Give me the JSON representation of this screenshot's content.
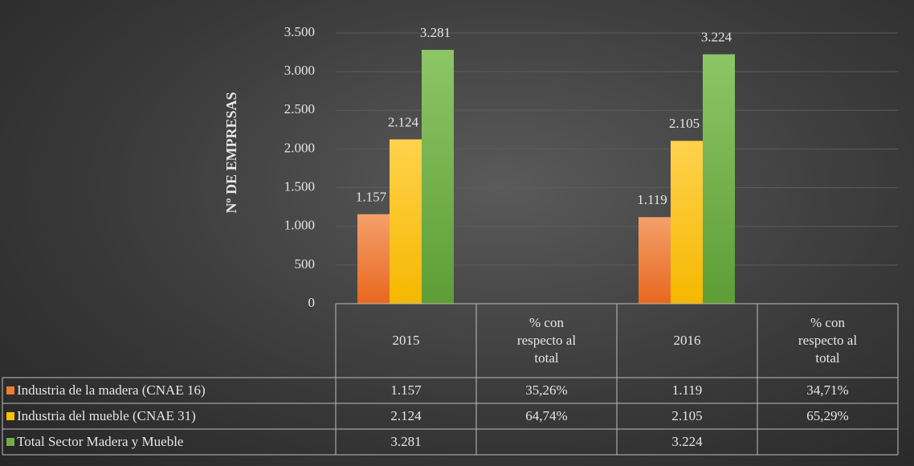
{
  "chart_data": {
    "type": "bar",
    "y_label": "Nº DE EMPRESAS",
    "categories": [
      "2015",
      "% con respecto al total",
      "2016",
      "% con respecto al total"
    ],
    "series": [
      {
        "name": "Industria de la madera (CNAE 16)",
        "color": "#ed7d31",
        "values": [
          1157,
          null,
          1119,
          null
        ],
        "value_labels": [
          "1.157",
          null,
          "1.119",
          null
        ],
        "shares": [
          null,
          35.26,
          null,
          34.71
        ],
        "share_labels": [
          null,
          "35,26%",
          null,
          "34,71%"
        ]
      },
      {
        "name": "Industria del mueble (CNAE 31)",
        "color": "#ffc000",
        "values": [
          2124,
          null,
          2105,
          null
        ],
        "value_labels": [
          "2.124",
          null,
          "2.105",
          null
        ],
        "shares": [
          null,
          64.74,
          null,
          65.29
        ],
        "share_labels": [
          null,
          "64,74%",
          null,
          "65,29%"
        ]
      },
      {
        "name": "Total Sector Madera y Mueble",
        "color": "#70ad47",
        "values": [
          3281,
          null,
          3224,
          null
        ],
        "value_labels": [
          "3.281",
          null,
          "3.224",
          null
        ]
      }
    ],
    "ylim": [
      0,
      3500
    ],
    "yticks": [
      0,
      500,
      {
        "value": 1000,
        "label": "1.000"
      },
      {
        "value": 1500,
        "label": "1.500"
      },
      {
        "value": 2000,
        "label": "2.000"
      },
      {
        "value": 2500,
        "label": "2.500"
      },
      {
        "value": 3000,
        "label": "3.000"
      },
      {
        "value": 3500,
        "label": "3.500"
      }
    ],
    "grid": true
  }
}
